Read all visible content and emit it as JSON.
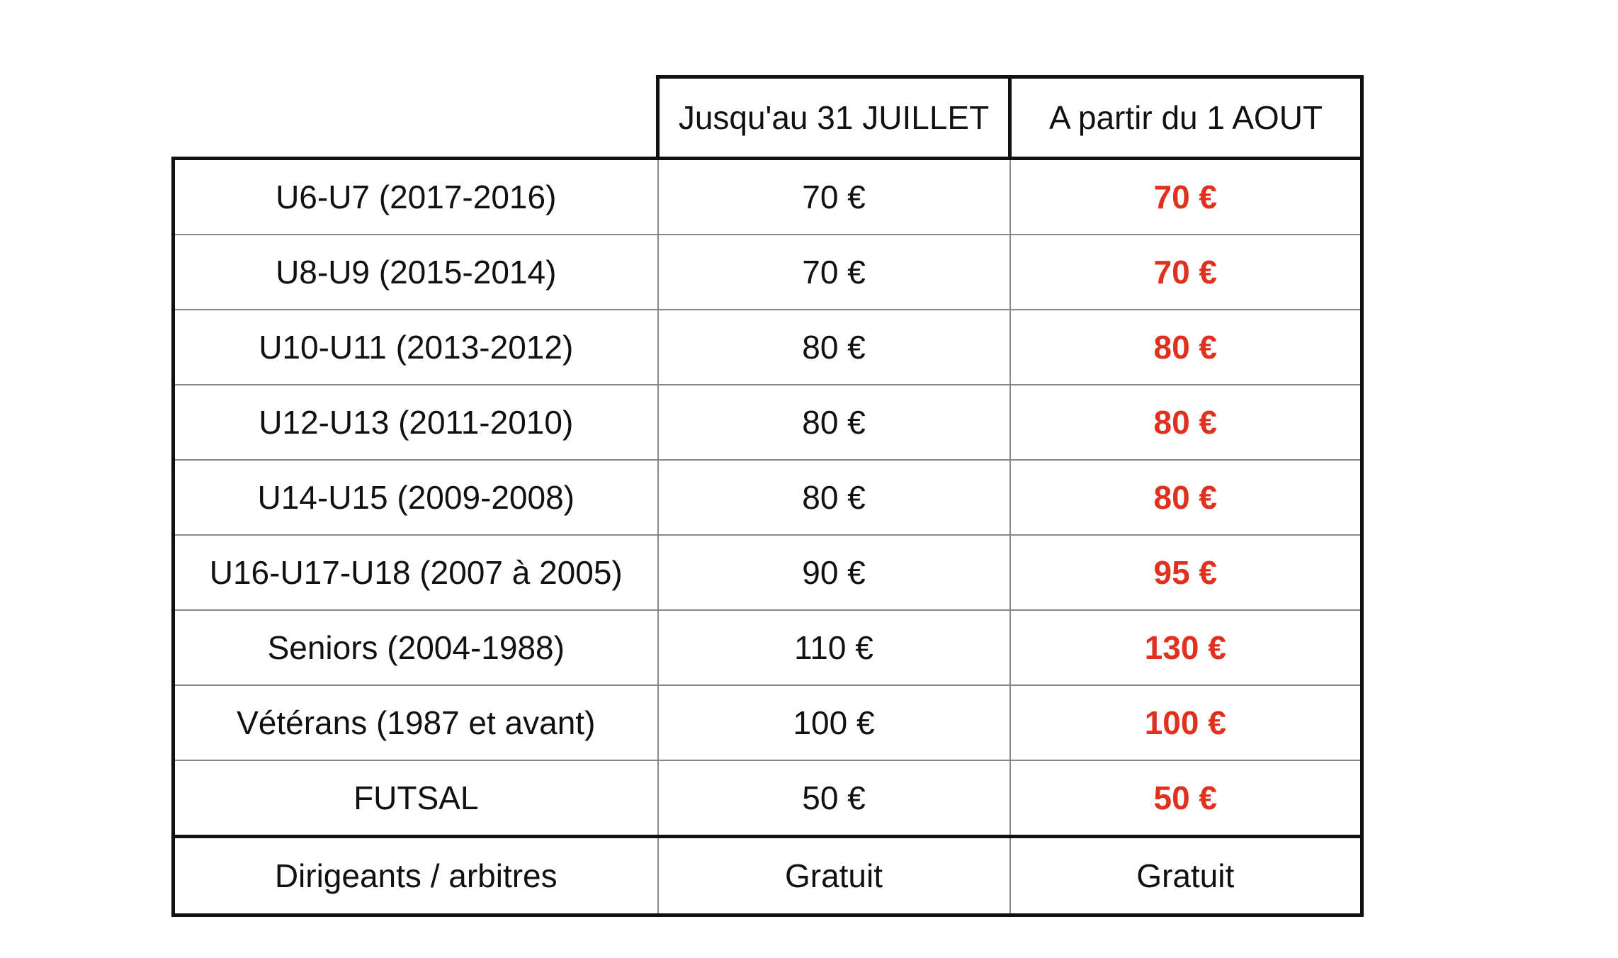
{
  "table": {
    "headers": [
      "",
      "Jusqu'au 31 JUILLET",
      "A partir du 1 AOUT"
    ],
    "rows": [
      {
        "category": "U6-U7 (2017-2016)",
        "before": "70 €",
        "after": "70 €"
      },
      {
        "category": "U8-U9 (2015-2014)",
        "before": "70 €",
        "after": "70 €"
      },
      {
        "category": "U10-U11 (2013-2012)",
        "before": "80 €",
        "after": "80 €"
      },
      {
        "category": "U12-U13 (2011-2010)",
        "before": "80 €",
        "after": "80 €"
      },
      {
        "category": "U14-U15 (2009-2008)",
        "before": "80 €",
        "after": "80 €"
      },
      {
        "category": "U16-U17-U18 (2007 à 2005)",
        "before": "90 €",
        "after": "95 €"
      },
      {
        "category": "Seniors (2004-1988)",
        "before": "110 €",
        "after": "130 €"
      },
      {
        "category": "Vétérans (1987 et avant)",
        "before": "100 €",
        "after": "100 €"
      },
      {
        "category": "FUTSAL",
        "before": "50 €",
        "after": "50 €"
      }
    ],
    "footer": {
      "category": "Dirigeants / arbitres",
      "before": "Gratuit",
      "after": "Gratuit"
    }
  },
  "colors": {
    "after_price": "#e0301e",
    "text": "#111111",
    "border_thick": "#111111",
    "border_thin": "#888888"
  }
}
